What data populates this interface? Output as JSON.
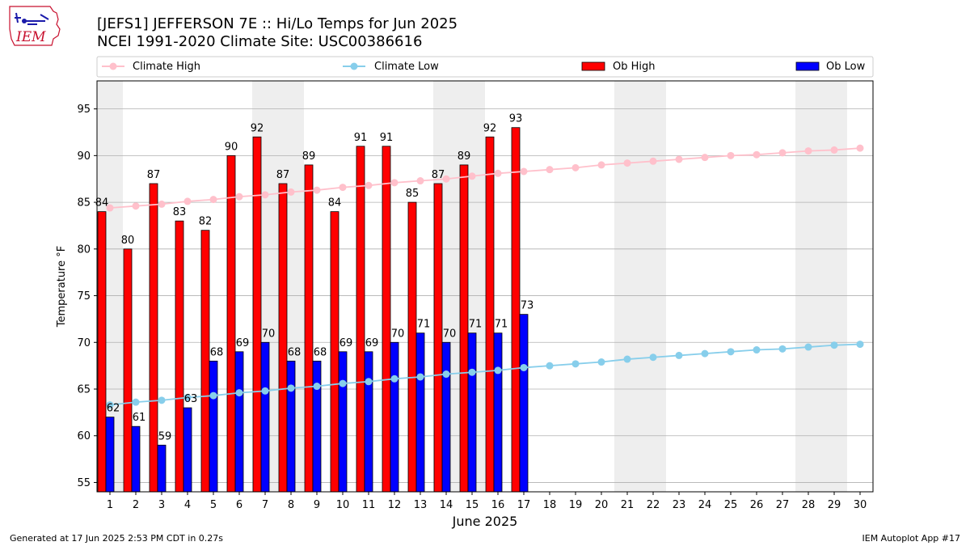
{
  "header": {
    "title_line1": "[JEFS1] JEFFERSON 7E :: Hi/Lo Temps for Jun 2025",
    "title_line2": "NCEI 1991-2020 Climate Site: USC00386616",
    "logo_text": "IEM"
  },
  "legend": {
    "climate_high": "Climate High",
    "climate_low": "Climate Low",
    "ob_high": "Ob High",
    "ob_low": "Ob Low"
  },
  "footer": {
    "generated": "Generated at 17 Jun 2025 2:53 PM CDT in 0.27s",
    "app": "IEM Autoplot App #17"
  },
  "colors": {
    "ob_high": "#ff0000",
    "ob_low": "#0000ff",
    "climate_high": "#ffc0cb",
    "climate_low": "#87ceeb",
    "weekend_shade": "#eeeeee",
    "grid": "#b0b0b0"
  },
  "chart_data": {
    "type": "bar",
    "xlabel": "June 2025",
    "ylabel": "Temperature °F",
    "ylim": [
      54,
      98
    ],
    "yticks": [
      55,
      60,
      65,
      70,
      75,
      80,
      85,
      90,
      95
    ],
    "grid": "horizontal",
    "legend_position": "top",
    "days": [
      1,
      2,
      3,
      4,
      5,
      6,
      7,
      8,
      9,
      10,
      11,
      12,
      13,
      14,
      15,
      16,
      17,
      18,
      19,
      20,
      21,
      22,
      23,
      24,
      25,
      26,
      27,
      28,
      29,
      30
    ],
    "weekend_days": [
      1,
      7,
      8,
      14,
      15,
      21,
      22,
      28,
      29
    ],
    "series": [
      {
        "name": "Ob High",
        "values": [
          84,
          80,
          87,
          83,
          82,
          90,
          92,
          87,
          89,
          84,
          91,
          91,
          85,
          87,
          89,
          92,
          93
        ]
      },
      {
        "name": "Ob Low",
        "values": [
          62,
          61,
          59,
          63,
          68,
          69,
          70,
          68,
          68,
          69,
          69,
          70,
          71,
          70,
          71,
          71,
          73
        ]
      },
      {
        "name": "Climate High",
        "values": [
          84.4,
          84.6,
          84.8,
          85.1,
          85.3,
          85.6,
          85.8,
          86.1,
          86.3,
          86.6,
          86.8,
          87.1,
          87.3,
          87.5,
          87.8,
          88.1,
          88.3,
          88.5,
          88.7,
          89.0,
          89.2,
          89.4,
          89.6,
          89.8,
          90.0,
          90.1,
          90.3,
          90.5,
          90.6,
          90.8
        ]
      },
      {
        "name": "Climate Low",
        "values": [
          63.3,
          63.6,
          63.8,
          64.1,
          64.3,
          64.6,
          64.8,
          65.1,
          65.3,
          65.6,
          65.8,
          66.1,
          66.3,
          66.6,
          66.8,
          67.0,
          67.3,
          67.5,
          67.7,
          67.9,
          68.2,
          68.4,
          68.6,
          68.8,
          69.0,
          69.2,
          69.3,
          69.5,
          69.7,
          69.8
        ]
      }
    ]
  }
}
